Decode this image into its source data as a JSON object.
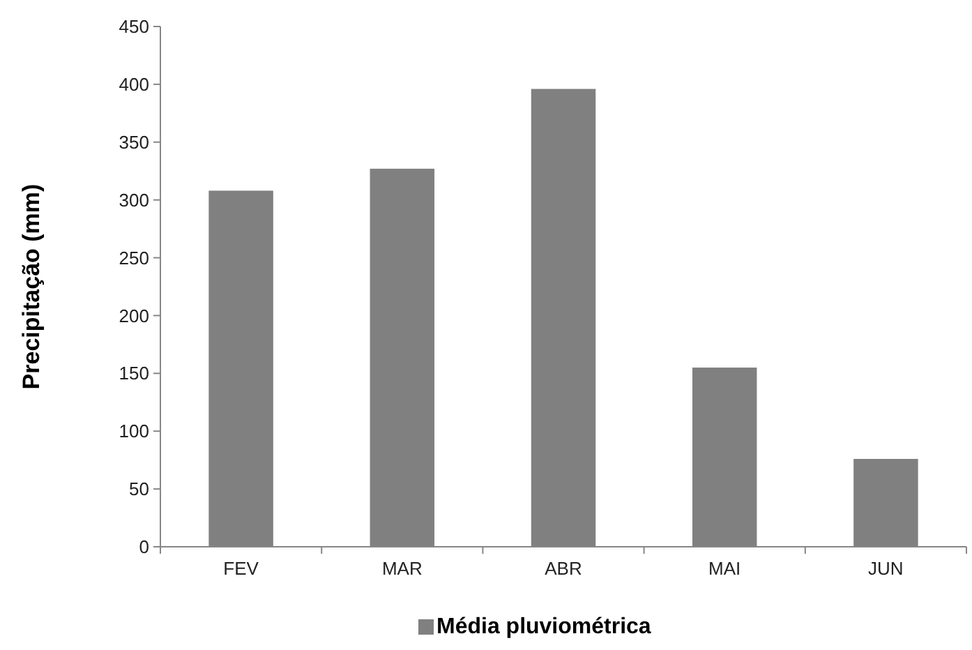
{
  "chart_data": {
    "type": "bar",
    "ylabel": "Precipitação (mm)",
    "categories": [
      "FEV",
      "MAR",
      "ABR",
      "MAI",
      "JUN"
    ],
    "series": [
      {
        "name": "Média pluviométrica",
        "color": "#808080",
        "values": [
          308,
          327,
          396,
          155,
          76
        ]
      }
    ],
    "ylim": [
      0,
      450
    ],
    "yticks": [
      0,
      50,
      100,
      150,
      200,
      250,
      300,
      350,
      400,
      450
    ],
    "grid": false,
    "legend": "bottom"
  }
}
